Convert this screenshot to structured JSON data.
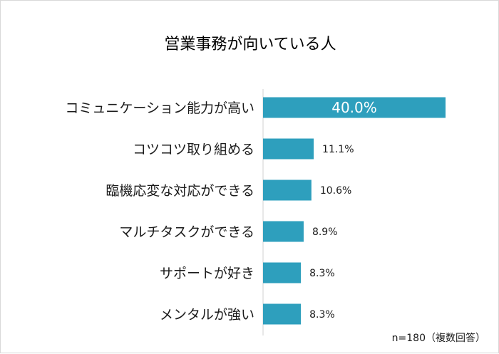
{
  "chart_data": {
    "type": "bar",
    "orientation": "horizontal",
    "title": "営業事務が向いている人",
    "categories": [
      "コミュニケーション能力が高い",
      "コツコツ取り組める",
      "臨機応変な対応ができる",
      "マルチタスクができる",
      "サポートが好き",
      "メンタルが強い"
    ],
    "values": [
      40.0,
      11.1,
      10.6,
      8.9,
      8.3,
      8.3
    ],
    "value_labels": [
      "40.0%",
      "11.1%",
      "10.6%",
      "8.9%",
      "8.3%",
      "8.3%"
    ],
    "xlim": [
      0,
      40
    ],
    "note": "n=180（複数回答）",
    "bar_color": "#2e9fbd",
    "grid": false,
    "legend": "none"
  }
}
